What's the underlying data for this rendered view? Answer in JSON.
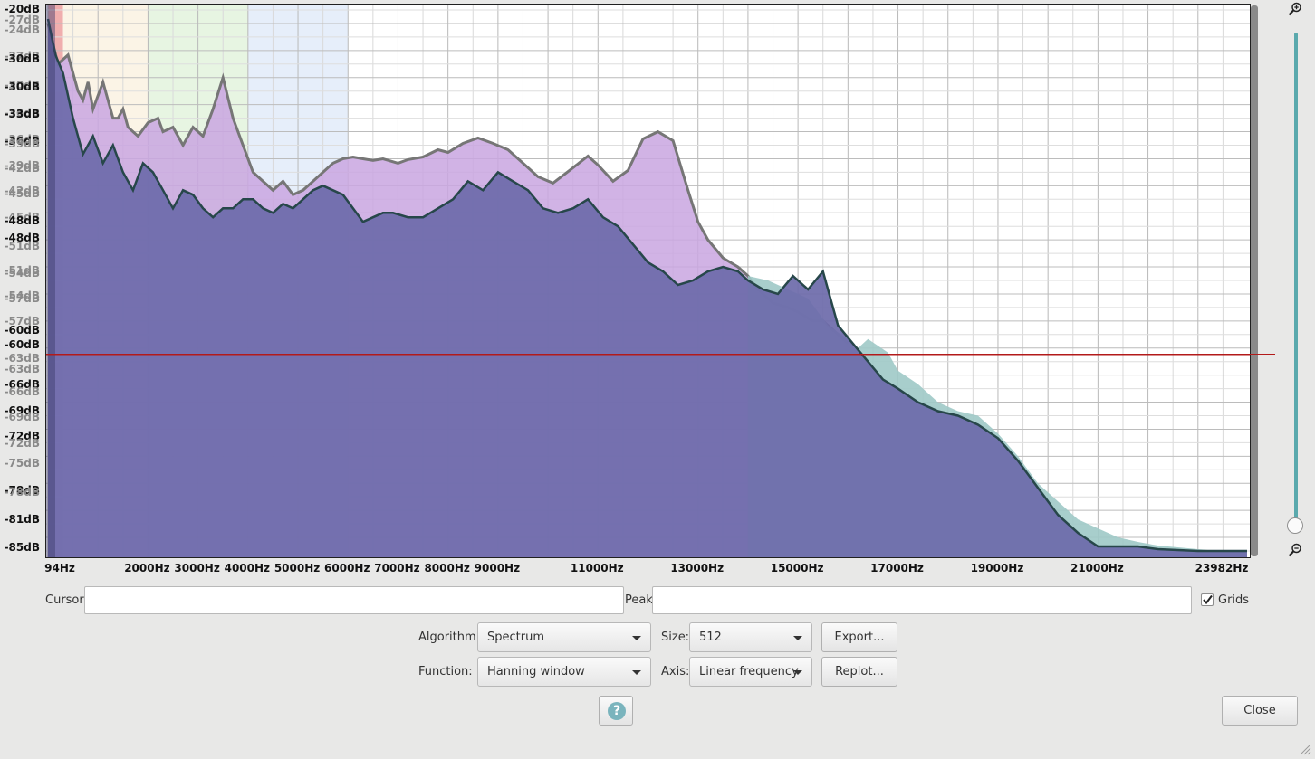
{
  "y_axis_labels": [
    {
      "text": "-20dB",
      "ghost": false,
      "db": -20
    },
    {
      "text": "-27dB",
      "ghost": true,
      "db": -21.2
    },
    {
      "text": "-24dB",
      "ghost": true,
      "db": -22.3
    },
    {
      "text": "-27dB",
      "ghost": true,
      "db": -25.2
    },
    {
      "text": "-30dB",
      "ghost": false,
      "db": -25.5
    },
    {
      "text": "-30dB",
      "ghost": true,
      "db": -28.4
    },
    {
      "text": "-30dB",
      "ghost": false,
      "db": -28.6
    },
    {
      "text": "-36dB",
      "ghost": true,
      "db": -31.5
    },
    {
      "text": "-33dB",
      "ghost": false,
      "db": -31.6
    },
    {
      "text": "-36dB",
      "ghost": true,
      "db": -34.4
    },
    {
      "text": "-36dB",
      "ghost": false,
      "db": -34.6
    },
    {
      "text": "-39dB",
      "ghost": true,
      "db": -34.9
    },
    {
      "text": "-39dB",
      "ghost": true,
      "db": -37.4
    },
    {
      "text": "-42dB",
      "ghost": true,
      "db": -37.7
    },
    {
      "text": "-42dB",
      "ghost": true,
      "db": -40.2
    },
    {
      "text": "-45dB",
      "ghost": true,
      "db": -40.5
    },
    {
      "text": "-45dB",
      "ghost": true,
      "db": -43.1
    },
    {
      "text": "-48dB",
      "ghost": false,
      "db": -43.5
    },
    {
      "text": "-48dB",
      "ghost": false,
      "db": -45.4
    },
    {
      "text": "-51dB",
      "ghost": true,
      "db": -46.3
    },
    {
      "text": "-51dB",
      "ghost": true,
      "db": -49.0
    },
    {
      "text": "-54dB",
      "ghost": true,
      "db": -49.3
    },
    {
      "text": "-54dB",
      "ghost": true,
      "db": -51.8
    },
    {
      "text": "-57dB",
      "ghost": true,
      "db": -52.1
    },
    {
      "text": "-57dB",
      "ghost": true,
      "db": -54.6
    },
    {
      "text": "-60dB",
      "ghost": false,
      "db": -55.6
    },
    {
      "text": "-60dB",
      "ghost": false,
      "db": -57.2
    },
    {
      "text": "-63dB",
      "ghost": true,
      "db": -58.7
    },
    {
      "text": "-63dB",
      "ghost": true,
      "db": -59.9
    },
    {
      "text": "-66dB",
      "ghost": false,
      "db": -61.6
    },
    {
      "text": "-66dB",
      "ghost": true,
      "db": -62.4
    },
    {
      "text": "-69dB",
      "ghost": false,
      "db": -64.5
    },
    {
      "text": "-69dB",
      "ghost": true,
      "db": -65.3
    },
    {
      "text": "-72dB",
      "ghost": false,
      "db": -67.4
    },
    {
      "text": "-72dB",
      "ghost": true,
      "db": -68.2
    },
    {
      "text": "-75dB",
      "ghost": true,
      "db": -70.4
    },
    {
      "text": "-78dB",
      "ghost": false,
      "db": -73.4
    },
    {
      "text": "-78dB",
      "ghost": true,
      "db": -73.6
    },
    {
      "text": "-81dB",
      "ghost": false,
      "db": -76.6
    },
    {
      "text": "-85dB",
      "ghost": false,
      "db": -79.7
    }
  ],
  "x_axis_labels": [
    {
      "text": "94Hz",
      "hz": 94
    },
    {
      "text": "2000Hz",
      "hz": 2000
    },
    {
      "text": "3000Hz",
      "hz": 3000
    },
    {
      "text": "4000Hz",
      "hz": 4000
    },
    {
      "text": "5000Hz",
      "hz": 5000
    },
    {
      "text": "6000Hz",
      "hz": 6000
    },
    {
      "text": "7000Hz",
      "hz": 7000
    },
    {
      "text": "8000Hz",
      "hz": 8000
    },
    {
      "text": "9000Hz",
      "hz": 9000
    },
    {
      "text": "11000Hz",
      "hz": 11000
    },
    {
      "text": "13000Hz",
      "hz": 13000
    },
    {
      "text": "15000Hz",
      "hz": 15000
    },
    {
      "text": "17000Hz",
      "hz": 17000
    },
    {
      "text": "19000Hz",
      "hz": 19000
    },
    {
      "text": "21000Hz",
      "hz": 21000
    },
    {
      "text": "23982Hz",
      "hz": 23982
    }
  ],
  "chart_data": {
    "type": "area",
    "x_unit": "Hz",
    "y_unit": "dB",
    "xlim": [
      0,
      23982
    ],
    "ylim": [
      -80,
      -20
    ],
    "grid": true,
    "cursor_line_db": -58.2,
    "overlay_colors": {
      "background_purple": "#c9a6e0",
      "background_outline": "#767676",
      "teal": "#9fc9c6",
      "foreground": "#6d6aaa",
      "foreground_outline": "#27474a",
      "cursor_line": "#b31a1a"
    },
    "band_shades": [
      {
        "from_hz": 0,
        "to_hz": 300,
        "color": "#e36b6b"
      },
      {
        "from_hz": 300,
        "to_hz": 2000,
        "color": "#f8ecd6"
      },
      {
        "from_hz": 2000,
        "to_hz": 4000,
        "color": "#d7efcf"
      },
      {
        "from_hz": 4000,
        "to_hz": 6000,
        "color": "#d6e2f7"
      }
    ],
    "series": [
      {
        "key": "purple_spectrum",
        "x": [
          0,
          200,
          400,
          600,
          700,
          800,
          900,
          1100,
          1300,
          1400,
          1500,
          1600,
          1800,
          2000,
          2200,
          2300,
          2500,
          2700,
          2900,
          3100,
          3300,
          3500,
          3700,
          3900,
          4100,
          4300,
          4500,
          4700,
          4900,
          5100,
          5300,
          5500,
          5700,
          5900,
          6100,
          6300,
          6500,
          6700,
          7000,
          7200,
          7500,
          7800,
          8000,
          8300,
          8600,
          8900,
          9200,
          9500,
          9800,
          10100,
          10500,
          10800,
          11000,
          11300,
          11600,
          11900,
          12200,
          12500,
          12800,
          13000,
          13200,
          13500,
          13800,
          14000,
          14200,
          14500,
          14800,
          15000,
          15300,
          15500,
          15800,
          16000
        ],
        "y": [
          -21.5,
          -26,
          -25,
          -29,
          -30,
          -28,
          -31,
          -28,
          -32,
          -32,
          -31,
          -33,
          -34,
          -32.5,
          -32,
          -33.5,
          -33,
          -35,
          -33,
          -34,
          -31,
          -27.5,
          -32,
          -35,
          -38,
          -39,
          -40,
          -39,
          -40.5,
          -40,
          -39,
          -38,
          -37,
          -36.5,
          -36.3,
          -36.5,
          -36.7,
          -36.5,
          -37,
          -36.6,
          -36.3,
          -35.5,
          -35.8,
          -34.8,
          -34.2,
          -34.8,
          -35.5,
          -37,
          -38.5,
          -39.2,
          -37.5,
          -36.2,
          -37.2,
          -39,
          -37.8,
          -34.3,
          -33.5,
          -34.5,
          -40,
          -43.5,
          -45.5,
          -47.5,
          -48.5,
          -49.5,
          -51,
          -52.5,
          -53,
          -53.5,
          -54.5,
          -54.5,
          -56,
          -57
        ]
      },
      {
        "key": "teal_spectrum",
        "x": [
          14000,
          14400,
          14800,
          15200,
          15600,
          16000,
          16200,
          16400,
          16800,
          17000,
          17400,
          17800,
          18200,
          18600,
          19000,
          19400,
          19800,
          20200,
          20600,
          21000,
          21400,
          21800,
          22200,
          22600,
          23000,
          23400,
          23982
        ],
        "y": [
          -49.5,
          -50,
          -51,
          -52,
          -55,
          -56.5,
          -57.5,
          -56.5,
          -58,
          -60,
          -61.5,
          -63.5,
          -64.5,
          -65,
          -67,
          -69.5,
          -72.5,
          -74.5,
          -76.5,
          -77.5,
          -78.5,
          -79,
          -79.4,
          -79.6,
          -79.8,
          -80,
          -80
        ]
      },
      {
        "key": "foreground_spectrum",
        "x": [
          0,
          150,
          300,
          500,
          700,
          900,
          1100,
          1300,
          1500,
          1700,
          1900,
          2100,
          2300,
          2500,
          2700,
          2900,
          3100,
          3300,
          3500,
          3700,
          3900,
          4100,
          4300,
          4500,
          4700,
          4900,
          5100,
          5300,
          5500,
          5700,
          5900,
          6100,
          6300,
          6500,
          6700,
          6900,
          7200,
          7500,
          7800,
          8100,
          8400,
          8700,
          9000,
          9300,
          9600,
          9900,
          10200,
          10500,
          10800,
          11100,
          11400,
          11700,
          12000,
          12300,
          12600,
          12900,
          13200,
          13500,
          13800,
          14000,
          14300,
          14600,
          14900,
          15200,
          15500,
          15800,
          16100,
          16400,
          16700,
          17000,
          17400,
          17800,
          18200,
          18600,
          19000,
          19400,
          19800,
          20200,
          20600,
          21000,
          21400,
          21800,
          22200,
          22600,
          23000,
          23400,
          23982
        ],
        "y": [
          -21,
          -25,
          -27,
          -32,
          -36,
          -34,
          -37,
          -35,
          -38,
          -40,
          -37,
          -38,
          -40,
          -42,
          -40,
          -40.5,
          -42,
          -43,
          -42,
          -42,
          -41,
          -41,
          -42,
          -42.5,
          -41.5,
          -42,
          -41,
          -40,
          -39.5,
          -40,
          -40.5,
          -42,
          -43.5,
          -43,
          -42.5,
          -42.5,
          -43,
          -43,
          -42,
          -41,
          -39,
          -40,
          -38,
          -39,
          -40,
          -42,
          -42.5,
          -42,
          -41,
          -43,
          -44,
          -46,
          -48,
          -49,
          -50.5,
          -50,
          -49,
          -48.5,
          -49,
          -50,
          -51,
          -51.5,
          -49.5,
          -51,
          -49,
          -55,
          -57,
          -59,
          -61,
          -62,
          -63.5,
          -64.5,
          -65,
          -66,
          -67.5,
          -70,
          -73,
          -76,
          -78,
          -79.5,
          -79.5,
          -79.5,
          -79.8,
          -79.9,
          -80,
          -80,
          -80
        ]
      }
    ]
  },
  "controls": {
    "cursor_label": "Cursor:",
    "cursor_value": "",
    "peak_label": "Peak:",
    "peak_value": "",
    "grids_label": "Grids",
    "grids_checked": true,
    "algorithm_label": "Algorithm:",
    "algorithm_value": "Spectrum",
    "size_label": "Size:",
    "size_value": "512",
    "export_label": "Export...",
    "function_label": "Function:",
    "function_value": "Hanning window",
    "axis_label": "Axis:",
    "axis_value": "Linear frequency",
    "replot_label": "Replot...",
    "help_glyph": "?",
    "close_label": "Close"
  },
  "icons": {
    "zoom_in": "zoom-in-icon",
    "zoom_out": "zoom-out-icon",
    "checkbox": "checkmark-icon",
    "resize": "resize-grip-icon"
  }
}
